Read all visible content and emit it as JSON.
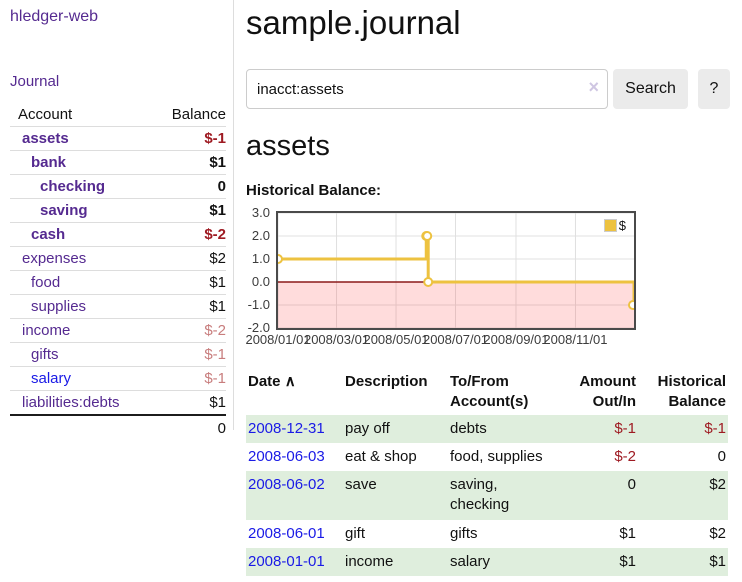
{
  "colors": {
    "link_purple": "#552a90",
    "link_blue": "#1a1ae6",
    "negative_strong": "#9e1a22",
    "negative_muted": "#c87d7d",
    "row_green": "#dfeedd",
    "chart_series_yellow": "#edc240",
    "chart_zero_line": "#8b1a1a",
    "chart_border": "#4a4a4a"
  },
  "sidebar": {
    "app_title": "hledger-web",
    "journal_link": "Journal",
    "accounts_table": {
      "headers": [
        "Account",
        "Balance"
      ],
      "rows": [
        {
          "name": "assets",
          "depth": 1,
          "in_account": true,
          "blue": false,
          "balance": "$-1",
          "balance_class": "neg"
        },
        {
          "name": "bank",
          "depth": 2,
          "in_account": true,
          "blue": false,
          "balance": "$1",
          "balance_class": ""
        },
        {
          "name": "checking",
          "depth": 3,
          "in_account": true,
          "blue": false,
          "balance": "0",
          "balance_class": ""
        },
        {
          "name": "saving",
          "depth": 3,
          "in_account": true,
          "blue": false,
          "balance": "$1",
          "balance_class": ""
        },
        {
          "name": "cash",
          "depth": 2,
          "in_account": true,
          "blue": false,
          "balance": "$-2",
          "balance_class": "neg"
        },
        {
          "name": "expenses",
          "depth": 1,
          "in_account": false,
          "blue": false,
          "balance": "$2",
          "balance_class": ""
        },
        {
          "name": "food",
          "depth": 2,
          "in_account": false,
          "blue": false,
          "balance": "$1",
          "balance_class": ""
        },
        {
          "name": "supplies",
          "depth": 2,
          "in_account": false,
          "blue": false,
          "balance": "$1",
          "balance_class": ""
        },
        {
          "name": "income",
          "depth": 1,
          "in_account": false,
          "blue": false,
          "balance": "$-2",
          "balance_class": "neg-muted"
        },
        {
          "name": "gifts",
          "depth": 2,
          "in_account": false,
          "blue": false,
          "balance": "$-1",
          "balance_class": "neg-muted"
        },
        {
          "name": "salary",
          "depth": 2,
          "in_account": false,
          "blue": true,
          "balance": "$-1",
          "balance_class": "neg-muted"
        },
        {
          "name": "liabilities:debts",
          "depth": 1,
          "in_account": false,
          "blue": false,
          "balance": "$1",
          "balance_class": ""
        }
      ],
      "total": "0"
    }
  },
  "main": {
    "title": "sample.journal",
    "account_heading": "assets",
    "chart_label": "Historical Balance:"
  },
  "search": {
    "value": "inacct:assets",
    "clear_icon": "×",
    "button_label": "Search",
    "help_label": "?"
  },
  "chart_data": {
    "type": "line",
    "step": true,
    "title": "Historical Balance:",
    "legend": {
      "label": "$",
      "position": "top-right"
    },
    "series": [
      {
        "name": "$",
        "color": "#edc240",
        "points": [
          [
            "2008-01-01",
            1
          ],
          [
            "2008-06-01",
            2
          ],
          [
            "2008-06-02",
            2
          ],
          [
            "2008-06-03",
            0
          ],
          [
            "2008-12-31",
            -1
          ]
        ]
      }
    ],
    "xlim": [
      "2008-01-01",
      "2008-12-31"
    ],
    "ylim": [
      -2,
      3
    ],
    "x_ticks": [
      "2008/01/01",
      "2008/03/01",
      "2008/05/01",
      "2008/07/01",
      "2008/09/01",
      "2008/11/01"
    ],
    "y_ticks": [
      "3.0",
      "2.0",
      "1.0",
      "0.0",
      "-1.0",
      "-2.0"
    ],
    "grid": true,
    "negative_region_shaded": true
  },
  "register": {
    "headers": [
      "Date",
      "Description",
      "To/From Account(s)",
      "Amount Out/In",
      "Historical Balance"
    ],
    "sort_icon": "∧",
    "rows": [
      {
        "date": "2008-12-31",
        "description": "pay off",
        "accounts": "debts",
        "amount": "$-1",
        "amount_neg": true,
        "balance": "$-1",
        "balance_neg": true
      },
      {
        "date": "2008-06-03",
        "description": "eat & shop",
        "accounts": "food, supplies",
        "amount": "$-2",
        "amount_neg": true,
        "balance": "0",
        "balance_neg": false
      },
      {
        "date": "2008-06-02",
        "description": "save",
        "accounts": "saving, checking",
        "amount": "0",
        "amount_neg": false,
        "balance": "$2",
        "balance_neg": false
      },
      {
        "date": "2008-06-01",
        "description": "gift",
        "accounts": "gifts",
        "amount": "$1",
        "amount_neg": false,
        "balance": "$2",
        "balance_neg": false
      },
      {
        "date": "2008-01-01",
        "description": "income",
        "accounts": "salary",
        "amount": "$1",
        "amount_neg": false,
        "balance": "$1",
        "balance_neg": false
      }
    ]
  }
}
